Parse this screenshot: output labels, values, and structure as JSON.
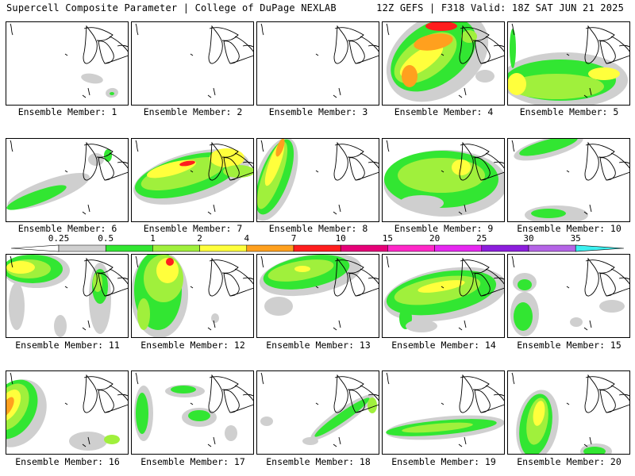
{
  "header": {
    "left": "Supercell Composite Parameter | College of DuPage NEXLAB",
    "right": "12Z GEFS | F318 Valid: 18Z SAT JUN 21 2025"
  },
  "legend": {
    "values": [
      "0.25",
      "0.5",
      "1",
      "2",
      "4",
      "7",
      "10",
      "15",
      "20",
      "25",
      "30",
      "35"
    ],
    "colors": [
      "#cfcfcf",
      "#32e632",
      "#a0f03c",
      "#ffff3c",
      "#ffa01e",
      "#ff1e1e",
      "#e60078",
      "#ff28c8",
      "#e628f0",
      "#8c1edc",
      "#b464e6",
      "#3cf0f0"
    ]
  },
  "panels": [
    {
      "label": "Ensemble Member: 1",
      "fields": [
        [
          115,
          98,
          14,
          6,
          "#cfcfcf",
          10
        ],
        [
          140,
          116,
          8,
          6,
          "#cfcfcf",
          -10
        ],
        [
          140,
          117,
          3,
          2,
          "#32e632",
          0
        ]
      ]
    },
    {
      "label": "Ensemble Member: 2",
      "fields": [
        [
          3,
          85,
          8,
          24,
          "#cfcfcf",
          0
        ],
        [
          3,
          90,
          4,
          10,
          "#32e632",
          0
        ],
        [
          145,
          118,
          8,
          5,
          "#cfcfcf",
          0
        ],
        [
          146,
          119,
          3,
          2,
          "#32e632",
          0
        ]
      ]
    },
    {
      "label": "Ensemble Member: 3",
      "fields": [
        [
          80,
          63,
          80,
          45,
          "#cfcfcf",
          0
        ],
        [
          75,
          60,
          72,
          35,
          "#32e632",
          0
        ],
        [
          70,
          58,
          55,
          22,
          "#a0f03c",
          0
        ],
        [
          60,
          50,
          40,
          13,
          "#ffff3c",
          0
        ],
        [
          50,
          43,
          22,
          8,
          "#ffa01e",
          -10
        ],
        [
          90,
          40,
          10,
          5,
          "#ffa01e",
          0
        ],
        [
          113,
          40,
          6,
          10,
          "#a0f03c",
          0
        ],
        [
          140,
          70,
          6,
          5,
          "#cfcfcf",
          0
        ]
      ]
    },
    {
      "label": "Ensemble Member: 4",
      "fields": [
        [
          550,
          70,
          70,
          50,
          "#cfcfcf",
          -35
        ],
        [
          545,
          68,
          60,
          38,
          "#32e632",
          -35
        ],
        [
          535,
          72,
          45,
          24,
          "#a0f03c",
          -35
        ],
        [
          530,
          75,
          32,
          12,
          "#ffff3c",
          -35
        ],
        [
          515,
          95,
          10,
          14,
          "#ffa01e",
          0
        ],
        [
          545,
          52,
          25,
          10,
          "#ffa01e",
          -10
        ],
        [
          555,
          32,
          20,
          6,
          "#ff1e1e",
          0
        ],
        [
          590,
          45,
          10,
          8,
          "#a0f03c",
          0
        ],
        [
          610,
          95,
          12,
          8,
          "#cfcfcf",
          0
        ]
      ]
    },
    {
      "label": "Ensemble Member: 5",
      "fields": [
        [
          710,
          100,
          80,
          35,
          "#cfcfcf",
          0
        ],
        [
          705,
          100,
          70,
          26,
          "#32e632",
          0
        ],
        [
          700,
          108,
          60,
          16,
          "#a0f03c",
          0
        ],
        [
          650,
          105,
          12,
          14,
          "#ffff3c",
          0
        ],
        [
          760,
          92,
          20,
          8,
          "#ffff3c",
          0
        ],
        [
          645,
          60,
          4,
          25,
          "#32e632",
          0
        ]
      ]
    },
    {
      "label": "Ensemble Member: 6",
      "fields": [
        [
          60,
          240,
          55,
          14,
          "#cfcfcf",
          -20
        ],
        [
          45,
          248,
          40,
          8,
          "#32e632",
          -20
        ],
        [
          120,
          200,
          10,
          8,
          "#cfcfcf",
          0
        ],
        [
          135,
          195,
          5,
          8,
          "#32e632",
          0
        ]
      ]
    },
    {
      "label": "Ensemble Member: 7",
      "fields": [
        [
          240,
          222,
          75,
          30,
          "#cfcfcf",
          -15
        ],
        [
          235,
          220,
          68,
          24,
          "#32e632",
          -15
        ],
        [
          230,
          218,
          55,
          16,
          "#a0f03c",
          -15
        ],
        [
          215,
          212,
          32,
          8,
          "#ffff3c",
          -15
        ],
        [
          235,
          205,
          10,
          3,
          "#ff1e1e",
          -10
        ],
        [
          285,
          198,
          22,
          12,
          "#ffff3c",
          0
        ],
        [
          300,
          215,
          20,
          8,
          "#a0f03c",
          0
        ]
      ]
    },
    {
      "label": "Ensemble Member: 8",
      "fields": [
        [
          345,
          225,
          24,
          55,
          "#cfcfcf",
          20
        ],
        [
          345,
          222,
          18,
          50,
          "#32e632",
          20
        ],
        [
          342,
          220,
          12,
          45,
          "#a0f03c",
          20
        ],
        [
          345,
          205,
          7,
          30,
          "#ffff3c",
          20
        ],
        [
          352,
          185,
          4,
          12,
          "#ffa01e",
          20
        ]
      ]
    },
    {
      "label": "Ensemble Member: 9",
      "fields": [
        [
          560,
          230,
          78,
          42,
          "#cfcfcf",
          0
        ],
        [
          555,
          225,
          72,
          36,
          "#32e632",
          0
        ],
        [
          555,
          220,
          55,
          22,
          "#a0f03c",
          0
        ],
        [
          580,
          210,
          12,
          10,
          "#ffff3c",
          0
        ],
        [
          530,
          255,
          28,
          10,
          "#cfcfcf",
          0
        ]
      ]
    },
    {
      "label": "Ensemble Member: 10",
      "fields": [
        [
          690,
          185,
          45,
          12,
          "#cfcfcf",
          -15
        ],
        [
          690,
          183,
          38,
          8,
          "#32e632",
          -15
        ],
        [
          700,
          270,
          40,
          12,
          "#cfcfcf",
          0
        ],
        [
          690,
          268,
          22,
          6,
          "#32e632",
          0
        ]
      ]
    },
    {
      "label": "Ensemble Member: 11",
      "fields": [
        [
          45,
          340,
          42,
          22,
          "#cfcfcf",
          0
        ],
        [
          40,
          338,
          38,
          18,
          "#32e632",
          0
        ],
        [
          35,
          338,
          28,
          12,
          "#a0f03c",
          0
        ],
        [
          25,
          336,
          18,
          8,
          "#ffff3c",
          0
        ],
        [
          125,
          375,
          14,
          45,
          "#cfcfcf",
          0
        ],
        [
          125,
          360,
          10,
          22,
          "#32e632",
          0
        ],
        [
          122,
          355,
          6,
          12,
          "#a0f03c",
          0
        ],
        [
          20,
          385,
          10,
          30,
          "#cfcfcf",
          0
        ],
        [
          75,
          410,
          8,
          14,
          "#cfcfcf",
          0
        ]
      ]
    },
    {
      "label": "Ensemble Member: 12",
      "fields": [
        [
          200,
          370,
          36,
          55,
          "#cfcfcf",
          0
        ],
        [
          198,
          365,
          30,
          50,
          "#32e632",
          0
        ],
        [
          205,
          350,
          25,
          30,
          "#a0f03c",
          0
        ],
        [
          210,
          340,
          14,
          16,
          "#ffff3c",
          0
        ],
        [
          213,
          329,
          5,
          5,
          "#ff1e1e",
          0
        ],
        [
          180,
          395,
          8,
          20,
          "#a0f03c",
          0
        ],
        [
          270,
          400,
          5,
          6,
          "#cfcfcf",
          0
        ]
      ]
    },
    {
      "label": "Ensemble Member: 13",
      "fields": [
        [
          390,
          345,
          65,
          25,
          "#cfcfcf",
          -10
        ],
        [
          385,
          342,
          55,
          20,
          "#32e632",
          -10
        ],
        [
          378,
          340,
          42,
          12,
          "#a0f03c",
          -10
        ],
        [
          380,
          338,
          10,
          4,
          "#ffff3c",
          0
        ],
        [
          350,
          385,
          18,
          12,
          "#cfcfcf",
          0
        ]
      ]
    },
    {
      "label": "Ensemble Member: 14",
      "fields": [
        [
          560,
          370,
          78,
          32,
          "#cfcfcf",
          -10
        ],
        [
          555,
          368,
          70,
          26,
          "#32e632",
          -10
        ],
        [
          550,
          365,
          55,
          16,
          "#a0f03c",
          -10
        ],
        [
          555,
          360,
          30,
          6,
          "#ffff3c",
          -10
        ],
        [
          510,
          400,
          8,
          14,
          "#32e632",
          0
        ],
        [
          530,
          410,
          20,
          8,
          "#cfcfcf",
          0
        ]
      ]
    },
    {
      "label": "Ensemble Member: 15",
      "fields": [
        [
          660,
          395,
          18,
          28,
          "#cfcfcf",
          0
        ],
        [
          658,
          398,
          12,
          18,
          "#32e632",
          0
        ],
        [
          660,
          355,
          15,
          12,
          "#cfcfcf",
          0
        ],
        [
          660,
          358,
          9,
          7,
          "#32e632",
          0
        ],
        [
          770,
          385,
          16,
          8,
          "#cfcfcf",
          0
        ],
        [
          725,
          405,
          8,
          6,
          "#cfcfcf",
          0
        ]
      ]
    },
    {
      "label": "Ensemble Member: 16",
      "fields": [
        [
          20,
          520,
          35,
          45,
          "#cfcfcf",
          30
        ],
        [
          15,
          515,
          28,
          40,
          "#32e632",
          30
        ],
        [
          12,
          512,
          20,
          32,
          "#a0f03c",
          30
        ],
        [
          10,
          510,
          12,
          22,
          "#ffff3c",
          30
        ],
        [
          8,
          512,
          6,
          14,
          "#ffa01e",
          30
        ],
        [
          110,
          555,
          24,
          12,
          "#cfcfcf",
          0
        ],
        [
          140,
          553,
          10,
          6,
          "#a0f03c",
          0
        ]
      ]
    },
    {
      "label": "Ensemble Member: 17",
      "fields": [
        [
          232,
          492,
          25,
          8,
          "#cfcfcf",
          0
        ],
        [
          230,
          490,
          16,
          5,
          "#32e632",
          0
        ],
        [
          250,
          525,
          22,
          12,
          "#cfcfcf",
          0
        ],
        [
          250,
          523,
          14,
          7,
          "#32e632",
          0
        ],
        [
          180,
          520,
          12,
          35,
          "#cfcfcf",
          0
        ],
        [
          178,
          520,
          8,
          26,
          "#32e632",
          0
        ],
        [
          290,
          545,
          8,
          10,
          "#cfcfcf",
          0
        ]
      ]
    },
    {
      "label": "Ensemble Member: 18",
      "fields": [
        [
          430,
          525,
          48,
          10,
          "#cfcfcf",
          -35
        ],
        [
          430,
          525,
          42,
          6,
          "#32e632",
          -35
        ],
        [
          335,
          530,
          8,
          6,
          "#cfcfcf",
          0
        ],
        [
          390,
          555,
          10,
          5,
          "#cfcfcf",
          0
        ],
        [
          468,
          510,
          6,
          10,
          "#a0f03c",
          0
        ]
      ]
    },
    {
      "label": "Ensemble Member: 19",
      "fields": [
        [
          560,
          538,
          75,
          14,
          "#cfcfcf",
          -5
        ],
        [
          555,
          538,
          70,
          9,
          "#32e632",
          -5
        ],
        [
          550,
          538,
          45,
          5,
          "#a0f03c",
          -5
        ]
      ]
    },
    {
      "label": "Ensemble Member: 20",
      "fields": [
        [
          676,
          535,
          26,
          45,
          "#cfcfcf",
          10
        ],
        [
          674,
          535,
          20,
          40,
          "#32e632",
          10
        ],
        [
          676,
          530,
          13,
          30,
          "#a0f03c",
          10
        ],
        [
          678,
          520,
          7,
          16,
          "#ffff3c",
          10
        ],
        [
          750,
          568,
          20,
          10,
          "#cfcfcf",
          0
        ],
        [
          748,
          568,
          14,
          6,
          "#32e632",
          0
        ]
      ]
    }
  ]
}
